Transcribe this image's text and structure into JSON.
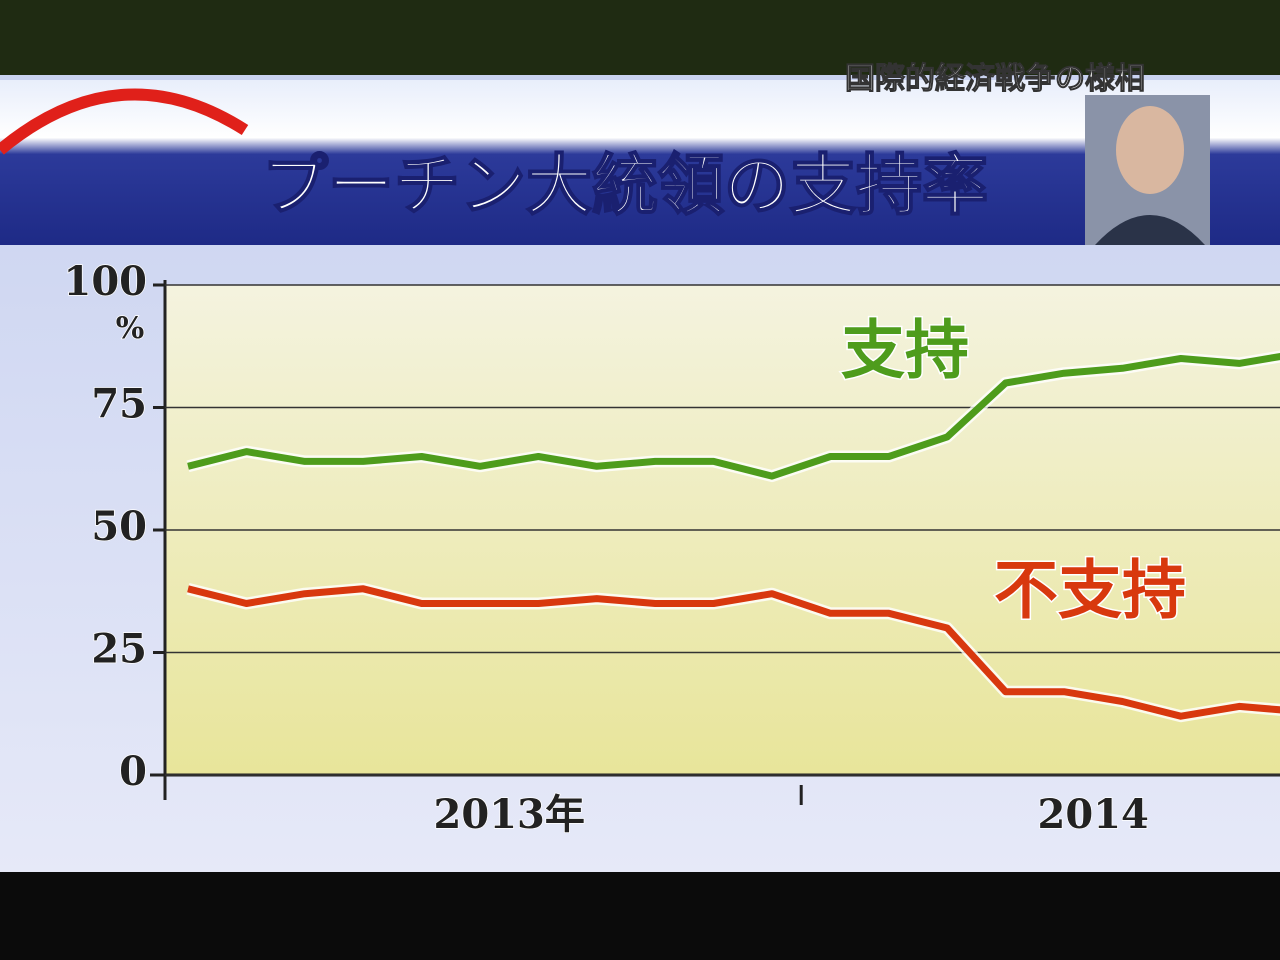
{
  "chart_data": {
    "type": "line",
    "header_tag": "国際的経済戦争の様相",
    "title": "プーチン大統領の支持率",
    "y_unit": "%",
    "categories": [
      null,
      null,
      null,
      null,
      null,
      "2013年",
      null,
      null,
      null,
      null,
      null,
      null,
      null,
      null,
      null,
      "2014",
      null,
      null,
      null,
      null
    ],
    "series": [
      {
        "name": "支持",
        "color": "#4e9c1c",
        "values": [
          63,
          66,
          64,
          64,
          65,
          63,
          65,
          63,
          64,
          64,
          61,
          65,
          65,
          69,
          80,
          82,
          83,
          85,
          84,
          86
        ]
      },
      {
        "name": "不支持",
        "color": "#d8380e",
        "values": [
          38,
          35,
          37,
          38,
          35,
          35,
          35,
          36,
          35,
          35,
          37,
          33,
          33,
          30,
          17,
          17,
          15,
          12,
          14,
          13
        ]
      }
    ],
    "ylim": [
      0,
      100
    ],
    "yticks": [
      0,
      25,
      50,
      75,
      100
    ],
    "grid": true
  }
}
